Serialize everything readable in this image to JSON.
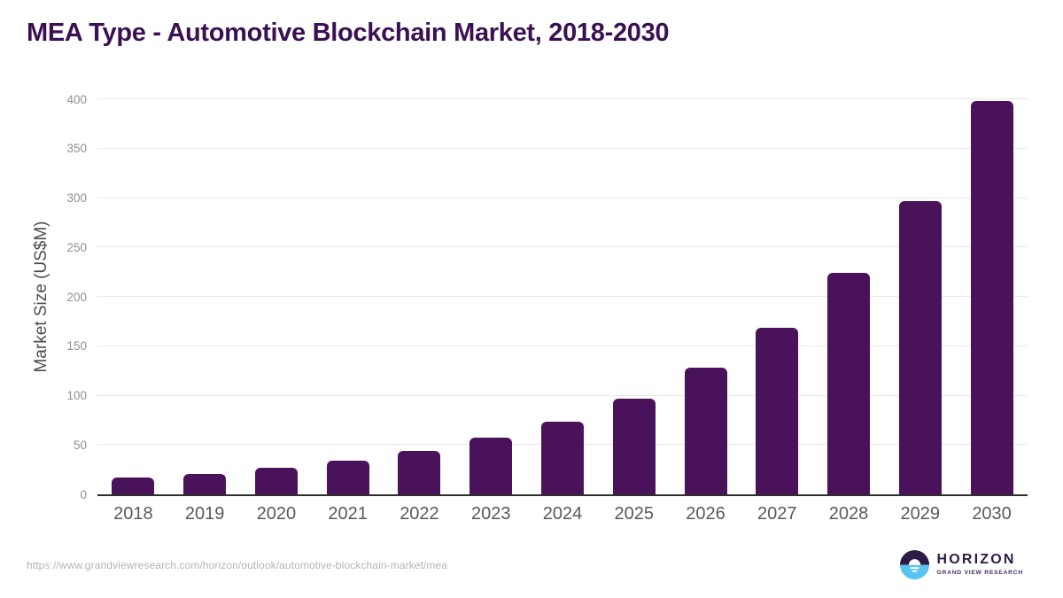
{
  "title": "MEA Type - Automotive Blockchain Market, 2018-2030",
  "source_url": "https://www.grandviewresearch.com/horizon/outlook/automotive-blockchain-market/mea",
  "logo": {
    "name": "HORIZON",
    "subtitle": "GRAND VIEW RESEARCH",
    "icon": "horizon-sun-circle"
  },
  "colors": {
    "bar": "#4a125a",
    "title": "#3b1053",
    "grid": "#e8e8e8",
    "axis_line": "#2e2e2e",
    "y_tick_label": "#8f8f8f",
    "x_tick_label": "#595959",
    "axis_title": "#4d4d4d",
    "source_url_text": "#b5b5b5",
    "logo_purple": "#2e1a47",
    "logo_subtitle": "#43305f",
    "logo_blue": "#59c4f1",
    "background": "#ffffff"
  },
  "chart_data": {
    "type": "bar",
    "title": "MEA Type - Automotive Blockchain Market, 2018-2030",
    "categories": [
      "2018",
      "2019",
      "2020",
      "2021",
      "2022",
      "2023",
      "2024",
      "2025",
      "2026",
      "2027",
      "2028",
      "2029",
      "2030"
    ],
    "values": [
      17,
      21,
      27,
      34,
      44,
      57,
      74,
      97,
      128,
      169,
      224,
      297,
      398
    ],
    "xlabel": "",
    "ylabel": "Market Size (US$M)",
    "ylim": [
      0,
      400
    ],
    "ytick_step": 50,
    "yticks": [
      0,
      50,
      100,
      150,
      200,
      250,
      300,
      350,
      400
    ],
    "grid": true,
    "legend": false,
    "bar_color": "#4a125a",
    "data_labels": false
  }
}
